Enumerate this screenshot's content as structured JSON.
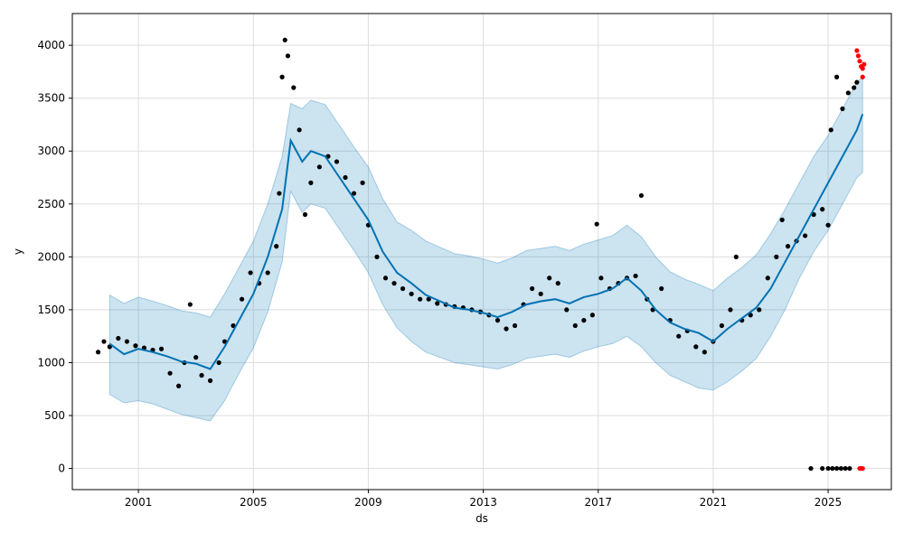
{
  "chart_data": {
    "type": "scatter",
    "title": "",
    "xlabel": "ds",
    "ylabel": "y",
    "xlim": [
      1998.7,
      2027.2
    ],
    "ylim": [
      -200,
      4300
    ],
    "grid": true,
    "x_ticks": [
      {
        "value": 2001,
        "label": "2001"
      },
      {
        "value": 2005,
        "label": "2005"
      },
      {
        "value": 2009,
        "label": "2009"
      },
      {
        "value": 2013,
        "label": "2013"
      },
      {
        "value": 2017,
        "label": "2017"
      },
      {
        "value": 2021,
        "label": "2021"
      },
      {
        "value": 2025,
        "label": "2025"
      }
    ],
    "y_ticks": [
      {
        "value": 0,
        "label": "0"
      },
      {
        "value": 500,
        "label": "500"
      },
      {
        "value": 1000,
        "label": "1000"
      },
      {
        "value": 1500,
        "label": "1500"
      },
      {
        "value": 2000,
        "label": "2000"
      },
      {
        "value": 2500,
        "label": "2500"
      },
      {
        "value": 3000,
        "label": "3000"
      },
      {
        "value": 3500,
        "label": "3500"
      },
      {
        "value": 4000,
        "label": "4000"
      }
    ],
    "colors": {
      "observed": "#000000",
      "forecast_line": "#0072B2",
      "uncertainty_band": "#0072B2",
      "outlier": "#ff0000",
      "grid": "#dddddd"
    },
    "forecast": {
      "x": [
        2000.0,
        2000.5,
        2001.0,
        2001.5,
        2002.0,
        2002.5,
        2003.0,
        2003.5,
        2004.0,
        2004.5,
        2005.0,
        2005.5,
        2006.0,
        2006.3,
        2006.7,
        2007.0,
        2007.5,
        2008.0,
        2008.5,
        2009.0,
        2009.5,
        2010.0,
        2010.5,
        2011.0,
        2011.5,
        2012.0,
        2012.5,
        2013.0,
        2013.5,
        2014.0,
        2014.5,
        2015.0,
        2015.5,
        2016.0,
        2016.5,
        2017.0,
        2017.5,
        2018.0,
        2018.5,
        2019.0,
        2019.5,
        2020.0,
        2020.5,
        2021.0,
        2021.5,
        2022.0,
        2022.5,
        2023.0,
        2023.5,
        2024.0,
        2024.5,
        2025.0,
        2025.5,
        2026.0,
        2026.2
      ],
      "yhat": [
        1180,
        1080,
        1130,
        1100,
        1060,
        1010,
        990,
        940,
        1150,
        1400,
        1650,
        2000,
        2450,
        3100,
        2900,
        3000,
        2950,
        2750,
        2550,
        2350,
        2050,
        1850,
        1750,
        1640,
        1580,
        1520,
        1500,
        1470,
        1430,
        1480,
        1550,
        1580,
        1600,
        1560,
        1620,
        1650,
        1700,
        1800,
        1680,
        1500,
        1380,
        1320,
        1280,
        1200,
        1320,
        1420,
        1520,
        1700,
        1950,
        2200,
        2450,
        2700,
        2950,
        3200,
        3350
      ],
      "lower": [
        700,
        620,
        640,
        610,
        560,
        510,
        480,
        450,
        640,
        900,
        1140,
        1480,
        1950,
        2620,
        2420,
        2500,
        2460,
        2260,
        2060,
        1850,
        1550,
        1330,
        1200,
        1100,
        1050,
        1000,
        980,
        960,
        940,
        980,
        1040,
        1060,
        1080,
        1050,
        1110,
        1150,
        1180,
        1250,
        1150,
        1000,
        880,
        820,
        760,
        740,
        820,
        920,
        1040,
        1250,
        1500,
        1800,
        2050,
        2250,
        2500,
        2750,
        2800
      ],
      "upper": [
        1640,
        1560,
        1620,
        1580,
        1540,
        1490,
        1470,
        1430,
        1650,
        1900,
        2150,
        2500,
        2950,
        3450,
        3400,
        3480,
        3440,
        3240,
        3040,
        2850,
        2550,
        2330,
        2250,
        2150,
        2090,
        2030,
        2010,
        1980,
        1940,
        1990,
        2060,
        2080,
        2100,
        2060,
        2120,
        2160,
        2200,
        2300,
        2190,
        2000,
        1860,
        1790,
        1740,
        1680,
        1800,
        1900,
        2020,
        2220,
        2450,
        2700,
        2950,
        3150,
        3400,
        3650,
        3700
      ]
    },
    "observed": {
      "x": [
        1999.6,
        1999.8,
        2000.0,
        2000.3,
        2000.6,
        2000.9,
        2001.2,
        2001.5,
        2001.8,
        2002.1,
        2002.4,
        2002.6,
        2002.8,
        2003.0,
        2003.2,
        2003.5,
        2003.8,
        2004.0,
        2004.3,
        2004.6,
        2004.9,
        2005.2,
        2005.5,
        2005.8,
        2005.9,
        2006.0,
        2006.1,
        2006.2,
        2006.4,
        2006.6,
        2006.8,
        2007.0,
        2007.3,
        2007.6,
        2007.9,
        2008.2,
        2008.5,
        2008.8,
        2009.0,
        2009.3,
        2009.6,
        2009.9,
        2010.2,
        2010.5,
        2010.8,
        2011.1,
        2011.4,
        2011.7,
        2012.0,
        2012.3,
        2012.6,
        2012.9,
        2013.2,
        2013.5,
        2013.8,
        2014.1,
        2014.4,
        2014.7,
        2015.0,
        2015.3,
        2015.6,
        2015.9,
        2016.2,
        2016.5,
        2016.8,
        2016.95,
        2017.1,
        2017.4,
        2017.7,
        2018.0,
        2018.3,
        2018.5,
        2018.7,
        2018.9,
        2019.2,
        2019.5,
        2019.8,
        2020.1,
        2020.4,
        2020.7,
        2021.0,
        2021.3,
        2021.6,
        2021.8,
        2022.0,
        2022.3,
        2022.6,
        2022.9,
        2023.2,
        2023.4,
        2023.6,
        2023.9,
        2024.2,
        2024.5,
        2024.8,
        2025.0,
        2025.1,
        2025.3,
        2025.5,
        2025.7,
        2025.9,
        2026.0
      ],
      "y": [
        1100,
        1200,
        1150,
        1230,
        1200,
        1160,
        1140,
        1120,
        1130,
        900,
        780,
        1000,
        1550,
        1050,
        880,
        830,
        1000,
        1200,
        1350,
        1600,
        1850,
        1750,
        1850,
        2100,
        2600,
        3700,
        4050,
        3900,
        3600,
        3200,
        2400,
        2700,
        2850,
        2950,
        2900,
        2750,
        2600,
        2700,
        2300,
        2000,
        1800,
        1750,
        1700,
        1650,
        1600,
        1600,
        1560,
        1550,
        1530,
        1520,
        1500,
        1480,
        1450,
        1400,
        1320,
        1350,
        1550,
        1700,
        1650,
        1800,
        1750,
        1500,
        1350,
        1400,
        1450,
        2310,
        1800,
        1700,
        1750,
        1800,
        1820,
        2580,
        1600,
        1500,
        1700,
        1400,
        1250,
        1300,
        1150,
        1100,
        1200,
        1350,
        1500,
        2000,
        1400,
        1450,
        1500,
        1800,
        2000,
        2350,
        2100,
        2150,
        2200,
        2400,
        2450,
        2300,
        3200,
        3700,
        3400,
        3550,
        3600,
        3650
      ]
    },
    "observed_zeros": {
      "x": [
        2024.4,
        2024.8,
        2025.0,
        2025.15,
        2025.3,
        2025.45,
        2025.6,
        2025.75
      ],
      "y": [
        0,
        0,
        0,
        0,
        0,
        0,
        0,
        0
      ]
    },
    "outliers": {
      "x": [
        2026.0,
        2026.05,
        2026.1,
        2026.15,
        2026.2,
        2026.2,
        2026.25,
        2026.15,
        2026.1,
        2026.2
      ],
      "y": [
        3950,
        3900,
        3850,
        3800,
        3780,
        3700,
        3820,
        0,
        0,
        0
      ]
    }
  }
}
